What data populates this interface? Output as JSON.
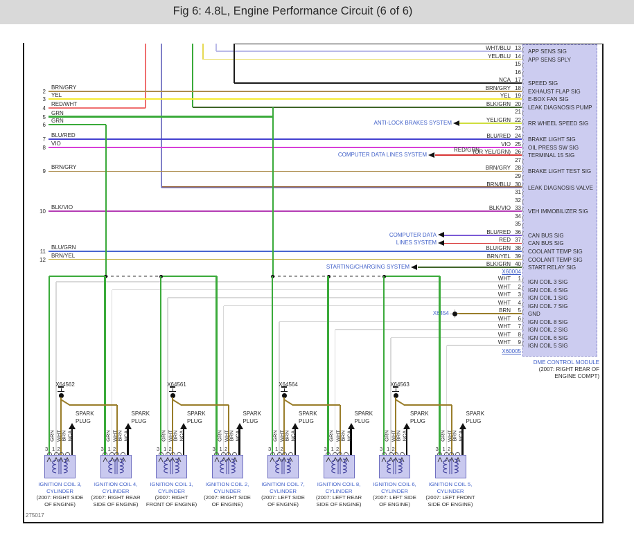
{
  "title": "Fig 6: 4.8L, Engine Performance Circuit (6 of 6)",
  "footer_code": "275017",
  "colors": {
    "WHT/BLU": "#b9b9e8",
    "YEL/BLU": "#e6da52",
    "NCA": "#1a1a1a",
    "BRN/GRY": "#ac8c4c",
    "YEL": "#f4ea30",
    "BLK/GRN": "#3f6428",
    "YEL/GRN": "#cede3d",
    "BLU/RED": "#4340d0",
    "BLU/RED_CAN": "#7b5ad6",
    "VIO": "#d83fd8",
    "RED": "#d83535",
    "RED/GRN": "#d83535",
    "RED/WHT": "#ef6f6f",
    "BLK/VIO": "#b43cb4",
    "BLU/GRN": "#4a66d0",
    "BRN/YEL": "#c0ab32",
    "GRN": "#3aaa3a",
    "WHT": "#d9d9d9",
    "BRN": "#997d2a",
    "BRN/BLU_top": "#9a6a42",
    "BRN/BLU_bot": "#8080c8",
    "frame": "#1a1a1a",
    "dash": "#999999",
    "module_fill": "#ccccf0",
    "module_border": "#8888cc",
    "blue_text": "#3f5fc8"
  },
  "dme": {
    "name_lines": [
      "DME CONTROL MODULE",
      "(2007: RIGHT REAR OF",
      "ENGINE COMPT)"
    ],
    "connector_top": "X60004",
    "connector_bottom": "X60005",
    "upper_pins": [
      {
        "n": 13,
        "wire": "WHT/BLU",
        "signal": "APP SENS SIG"
      },
      {
        "n": 14,
        "wire": "YEL/BLU",
        "signal": "APP SENS SPLY"
      },
      {
        "n": 15,
        "wire": "",
        "signal": ""
      },
      {
        "n": 16,
        "wire": "",
        "signal": ""
      },
      {
        "n": 17,
        "wire": "NCA",
        "signal": "SPEED SIG"
      },
      {
        "n": 18,
        "wire": "BRN/GRY",
        "signal": "EXHAUST FLAP SIG"
      },
      {
        "n": 19,
        "wire": "YEL",
        "signal": "E-BOX FAN SIG"
      },
      {
        "n": 20,
        "wire": "BLK/GRN",
        "signal": "LEAK DIAGNOSIS PUMP"
      },
      {
        "n": 21,
        "wire": "",
        "signal": ""
      },
      {
        "n": 22,
        "wire": "YEL/GRN",
        "signal": "RR WHEEL SPEED SIG"
      },
      {
        "n": 23,
        "wire": "",
        "signal": ""
      },
      {
        "n": 24,
        "wire": "BLU/RED",
        "signal": "BRAKE LIGHT SIG"
      },
      {
        "n": 25,
        "wire": "VIO",
        "signal": "OIL PRESS SW SIG"
      },
      {
        "n": 26,
        "wire": "(OR YEL/GRN)",
        "signal": "TERMINAL 15 SIG"
      },
      {
        "n": 27,
        "wire": "",
        "signal": ""
      },
      {
        "n": 28,
        "wire": "BRN/GRY",
        "signal": "BRAKE LIGHT TEST SIG"
      },
      {
        "n": 29,
        "wire": "",
        "signal": ""
      },
      {
        "n": 30,
        "wire": "BRN/BLU",
        "signal": "LEAK DIAGNOSIS VALVE"
      },
      {
        "n": 31,
        "wire": "",
        "signal": ""
      },
      {
        "n": 32,
        "wire": "",
        "signal": ""
      },
      {
        "n": 33,
        "wire": "BLK/VIO",
        "signal": "VEH IMMOBILIZER SIG"
      },
      {
        "n": 34,
        "wire": "",
        "signal": ""
      },
      {
        "n": 35,
        "wire": "",
        "signal": ""
      },
      {
        "n": 36,
        "wire": "BLU/RED",
        "signal": "CAN BUS SIG"
      },
      {
        "n": 37,
        "wire": "RED",
        "signal": "CAN BUS SIG"
      },
      {
        "n": 38,
        "wire": "BLU/GRN",
        "signal": "COOLANT TEMP SIG"
      },
      {
        "n": 39,
        "wire": "BRN/YEL",
        "signal": "COOLANT TEMP SIG"
      },
      {
        "n": 40,
        "wire": "BLK/GRN",
        "signal": "START RELAY SIG"
      }
    ],
    "lower_pins": [
      {
        "n": 1,
        "wire": "WHT",
        "signal": "IGN COIL 3 SIG"
      },
      {
        "n": 2,
        "wire": "WHT",
        "signal": "IGN COIL 4 SIG"
      },
      {
        "n": 3,
        "wire": "WHT",
        "signal": "IGN COIL 1 SIG"
      },
      {
        "n": 4,
        "wire": "WHT",
        "signal": "IGN COIL 7 SIG"
      },
      {
        "n": 5,
        "wire": "BRN",
        "signal": "GND"
      },
      {
        "n": 6,
        "wire": "WHT",
        "signal": "IGN COIL 8 SIG"
      },
      {
        "n": 7,
        "wire": "WHT",
        "signal": "IGN COIL 2 SIG"
      },
      {
        "n": 8,
        "wire": "WHT",
        "signal": "IGN COIL 6 SIG"
      },
      {
        "n": 9,
        "wire": "WHT",
        "signal": "IGN COIL 5 SIG"
      }
    ]
  },
  "left_pins": [
    {
      "n": 2,
      "wire": "BRN/GRY"
    },
    {
      "n": 3,
      "wire": "YEL"
    },
    {
      "n": 4,
      "wire": "RED/WHT"
    },
    {
      "n": 5,
      "wire": "GRN"
    },
    {
      "n": 6,
      "wire": "GRN"
    },
    {
      "n": 7,
      "wire": "BLU/RED"
    },
    {
      "n": 8,
      "wire": "VIO"
    },
    {
      "n": 9,
      "wire": "BRN/GRY"
    },
    {
      "n": 10,
      "wire": "BLK/VIO"
    },
    {
      "n": 11,
      "wire": "BLU/GRN"
    },
    {
      "n": 12,
      "wire": "BRN/YEL"
    }
  ],
  "system_refs": {
    "abs": "ANTI-LOCK BRAKES SYSTEM",
    "cdls": "COMPUTER DATA LINES SYSTEM",
    "cd_line1": "COMPUTER DATA",
    "cd_line2": "LINES SYSTEM",
    "scs": "STARTING/CHARGING SYSTEM"
  },
  "inline_labels": {
    "red_grn": "RED/GRN",
    "x6454": "X6454"
  },
  "coils": [
    {
      "connector": "X64562",
      "name": "IGNITION COIL 3,",
      "name2": "CYLINDER",
      "loc": [
        "(2007: RIGHT SIDE",
        "OF ENGINE)"
      ]
    },
    {
      "connector": "",
      "name": "IGNITION COIL 4,",
      "name2": "CYLINDER",
      "loc": [
        "(2007: RIGHT REAR",
        "SIDE OF ENGINE)"
      ]
    },
    {
      "connector": "X64561",
      "name": "IGNITION COIL 1,",
      "name2": "CYLINDER",
      "loc": [
        "(2007: RIGHT",
        "FRONT OF ENGINE)"
      ]
    },
    {
      "connector": "",
      "name": "IGNITION COIL 2,",
      "name2": "CYLINDER",
      "loc": [
        "(2007: RIGHT SIDE",
        "OF ENGINE)"
      ]
    },
    {
      "connector": "X64564",
      "name": "IGNITION COIL 7,",
      "name2": "CYLINDER",
      "loc": [
        "(2007: LEFT SIDE",
        "OF ENGINE)"
      ]
    },
    {
      "connector": "",
      "name": "IGNITION COIL 8,",
      "name2": "CYLINDER",
      "loc": [
        "(2007: LEFT REAR",
        "SIDE OF ENGINE)"
      ]
    },
    {
      "connector": "X64563",
      "name": "IGNITION COIL 6,",
      "name2": "CYLINDER",
      "loc": [
        "(2007: LEFT SIDE",
        "OF ENGINE)"
      ]
    },
    {
      "connector": "",
      "name": "IGNITION COIL 5,",
      "name2": "CYLINDER",
      "loc": [
        "(2007: LEFT FRONT",
        "SIDE OF ENGINE)"
      ]
    }
  ],
  "coil_pin_labels": [
    "GRN",
    "WHT",
    "BRN",
    "NCA"
  ],
  "coil_pin_numbers": [
    "3",
    "1",
    "2"
  ],
  "spark_plug": [
    "SPARK",
    "PLUG"
  ]
}
